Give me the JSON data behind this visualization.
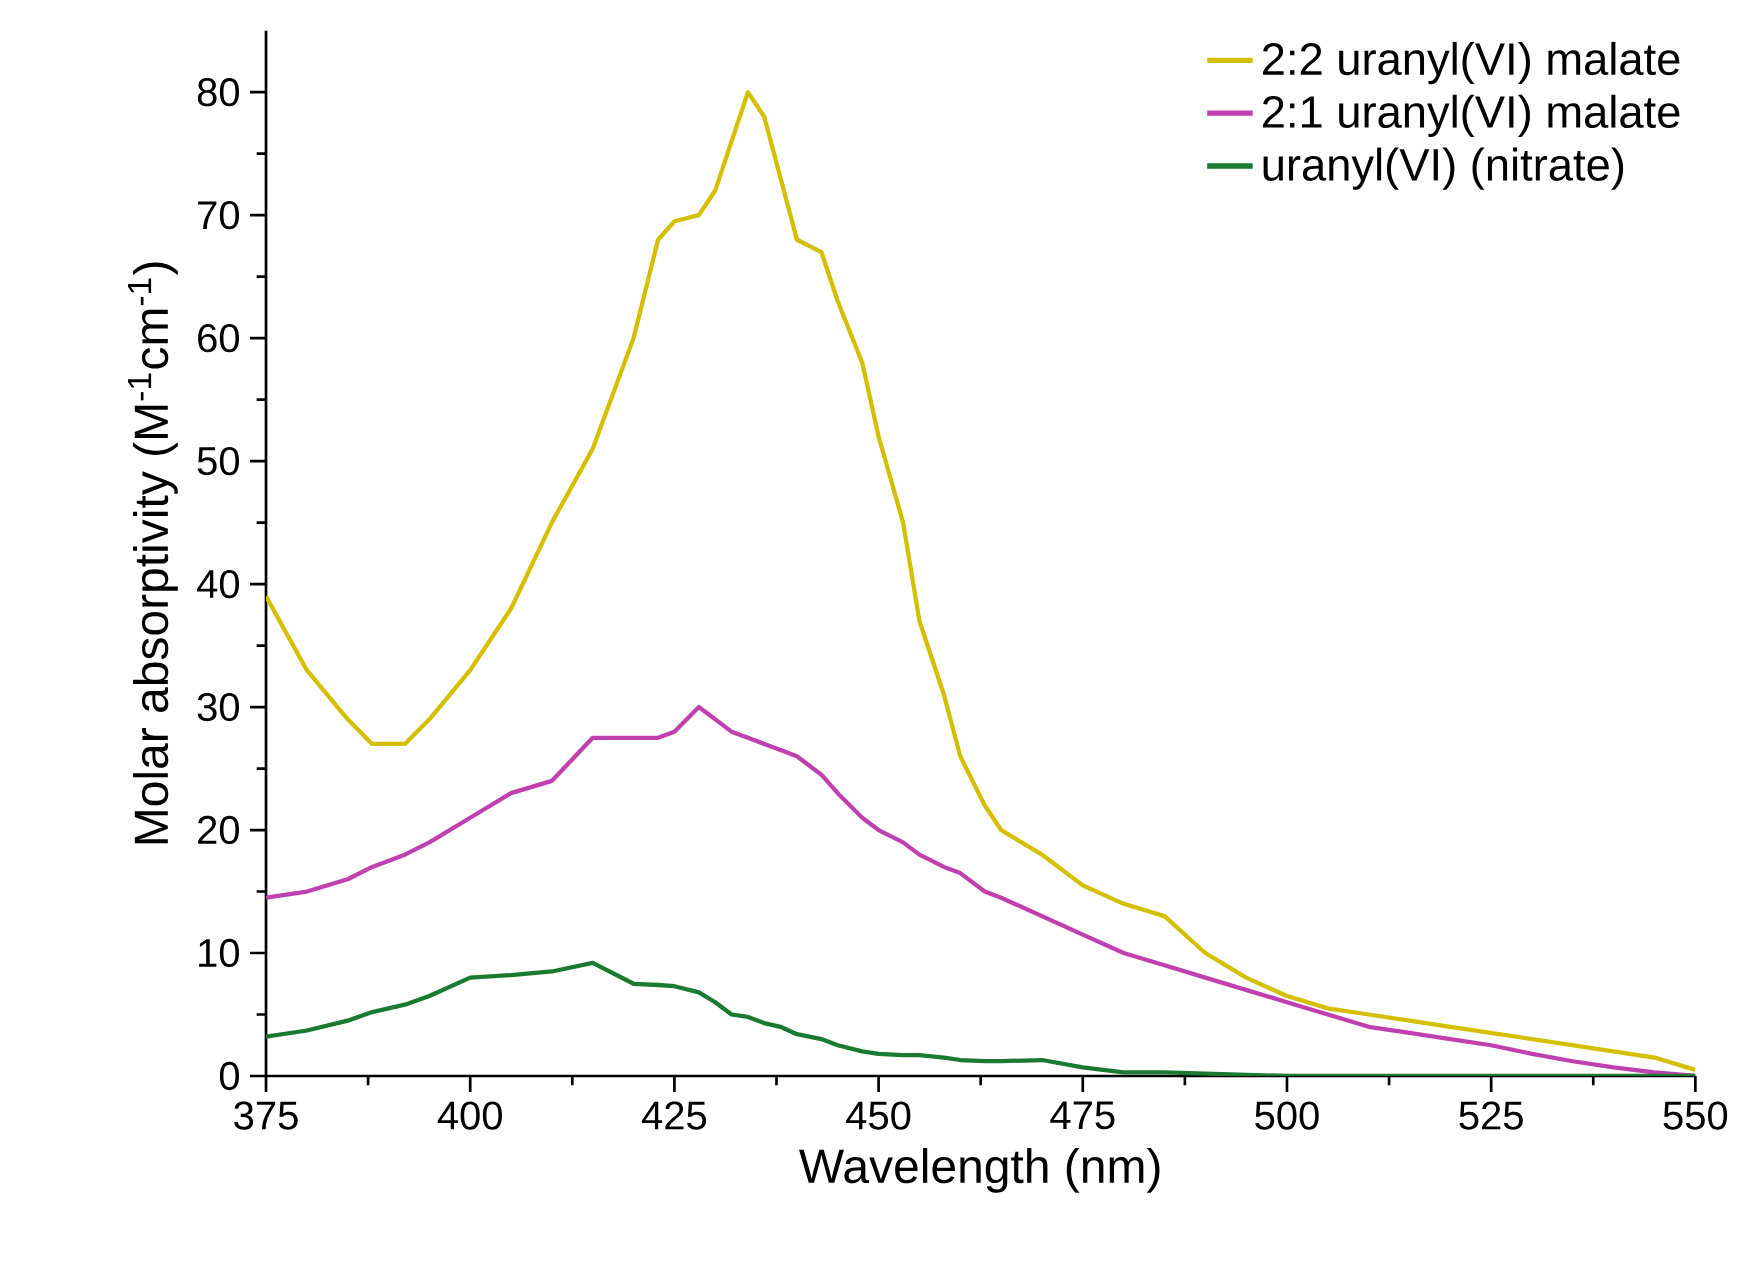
{
  "chart_data": {
    "type": "line",
    "xlabel": "Wavelength (nm)",
    "ylabel": "Molar absorptivity (M$^{-1}$cm$^{-1}$)",
    "xlim": [
      375,
      550
    ],
    "xticks": [
      375,
      400,
      425,
      450,
      475,
      500,
      525,
      550
    ],
    "ylim": [
      0,
      85
    ],
    "yticks": [
      0,
      10,
      20,
      30,
      40,
      50,
      60,
      70,
      80
    ],
    "legend": "top right",
    "grid": false,
    "marker": "none",
    "line_style": "solid",
    "x": [
      375,
      380,
      385,
      388,
      392,
      395,
      400,
      405,
      410,
      415,
      420,
      423,
      425,
      428,
      430,
      432,
      434,
      436,
      438,
      440,
      443,
      445,
      448,
      450,
      453,
      455,
      458,
      460,
      463,
      465,
      470,
      475,
      480,
      485,
      490,
      495,
      500,
      505,
      510,
      515,
      520,
      525,
      530,
      535,
      540,
      545,
      550
    ],
    "series": [
      {
        "name": "2:2 uranyl(VI) malate",
        "color": "#d4c000",
        "values": [
          39,
          33,
          29,
          27,
          27,
          29,
          33,
          38,
          45,
          51,
          60,
          68,
          69.5,
          70,
          72,
          76,
          80,
          78,
          73,
          68,
          67,
          63,
          58,
          52,
          45,
          37,
          31,
          26,
          22,
          20,
          18,
          15.5,
          14,
          13,
          10,
          8,
          6.5,
          5.5,
          5,
          4.5,
          4,
          3.5,
          3,
          2.5,
          2,
          1.5,
          0.5
        ]
      },
      {
        "name": "2:1 uranyl(VI) malate",
        "color": "#c040b0",
        "values": [
          14.5,
          15,
          16,
          17,
          18,
          19,
          21,
          23,
          24,
          27.5,
          27.5,
          27.5,
          28,
          30,
          29,
          28,
          27.5,
          27,
          26.5,
          26,
          24.5,
          23,
          21,
          20,
          19,
          18,
          17,
          16.5,
          15,
          14.5,
          13,
          11.5,
          10,
          9,
          8,
          7,
          6,
          5,
          4,
          3.5,
          3,
          2.5,
          1.8,
          1.2,
          0.7,
          0.3,
          0
        ]
      },
      {
        "name": "uranyl(VI) (nitrate)",
        "color": "#1a7a30",
        "values": [
          3.2,
          3.7,
          4.5,
          5.2,
          5.8,
          6.5,
          8,
          8.2,
          8.5,
          9.2,
          7.5,
          7.4,
          7.3,
          6.8,
          6,
          5,
          4.8,
          4.3,
          4,
          3.4,
          3,
          2.5,
          2,
          1.8,
          1.7,
          1.7,
          1.5,
          1.3,
          1.2,
          1.2,
          1.3,
          0.7,
          0.3,
          0.3,
          0.2,
          0.1,
          0,
          0,
          0,
          0,
          0,
          0,
          0,
          0,
          0,
          0,
          0
        ]
      }
    ]
  }
}
